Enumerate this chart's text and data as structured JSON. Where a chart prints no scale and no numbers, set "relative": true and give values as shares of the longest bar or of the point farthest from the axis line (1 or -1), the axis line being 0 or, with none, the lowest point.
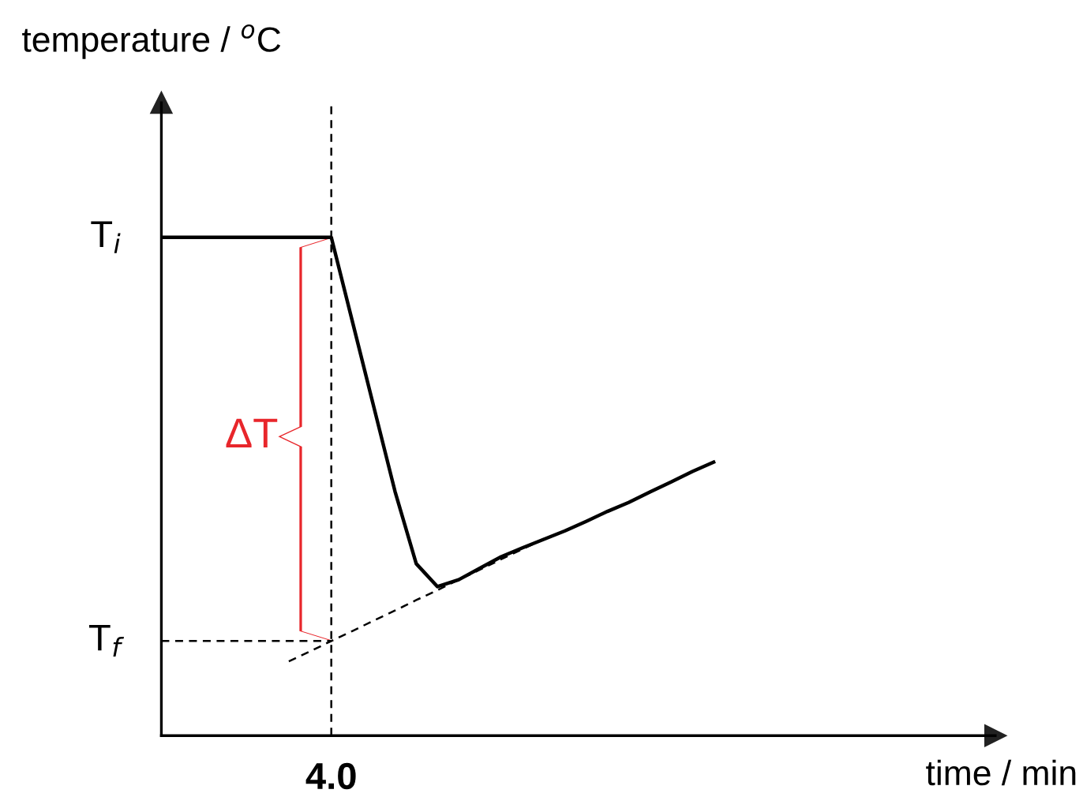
{
  "chart_data": {
    "type": "line",
    "relative": true,
    "categories": [
      null,
      null,
      null,
      null,
      null,
      null,
      null,
      null,
      null,
      null,
      null,
      null,
      null,
      null,
      null,
      null,
      null,
      null,
      null,
      null,
      null,
      null,
      null,
      null,
      null,
      null,
      null
    ],
    "series": [
      {
        "color": "#000000",
        "values": [
          1.0,
          1.0,
          1.0,
          1.0,
          1.0,
          1.0,
          1.0,
          1.0,
          1.0,
          0.83,
          0.66,
          0.49,
          0.345,
          0.299,
          0.313,
          0.336,
          0.359,
          0.377,
          0.394,
          0.411,
          0.43,
          0.45,
          0.468,
          0.489,
          0.509,
          0.53,
          0.549
        ]
      },
      {
        "color": "#000000",
        "line_style": "dashed",
        "values": [
          null,
          null,
          null,
          null,
          null,
          null,
          0.149,
          0.169,
          0.19,
          0.21,
          0.231,
          0.251,
          0.272,
          0.292,
          0.313,
          0.333,
          0.354,
          0.374,
          0.395,
          null,
          null,
          null,
          null,
          null,
          null,
          null,
          null
        ]
      },
      {
        "color": "#000000",
        "line_style": "dashed",
        "values": [
          0.19,
          0.19,
          0.19,
          0.19,
          0.19,
          0.19,
          0.19,
          0.19,
          0.19,
          null,
          null,
          null,
          null,
          null,
          null,
          null,
          null,
          null,
          null,
          null,
          null,
          null,
          null,
          null,
          null,
          null,
          null
        ]
      }
    ],
    "annotations": [
      "temperature / $^{o}$C",
      "T$_{i}$",
      "T$_{f}$",
      "4.0",
      "time / min",
      "ΔT"
    ]
  }
}
